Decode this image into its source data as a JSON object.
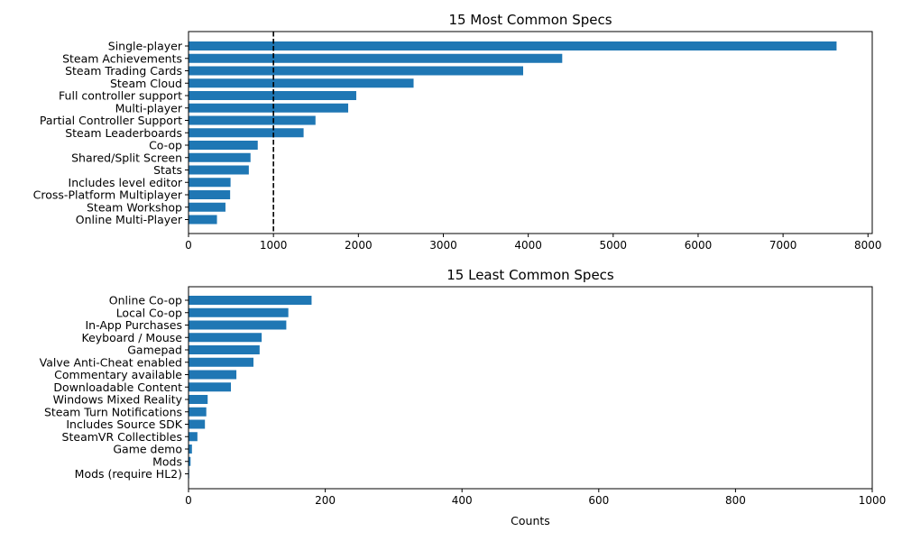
{
  "colors": {
    "bar": "#1f77b4",
    "axis": "#000000",
    "refline": "#000000"
  },
  "chart_data": [
    {
      "type": "bar",
      "orientation": "horizontal",
      "title": "15 Most Common Specs",
      "xlabel": "",
      "ylabel": "",
      "xlim": [
        0,
        8050
      ],
      "xticks": [
        0,
        1000,
        2000,
        3000,
        4000,
        5000,
        6000,
        7000,
        8000
      ],
      "reference_line": {
        "x": 1000,
        "style": "dashed"
      },
      "categories": [
        "Single-player",
        "Steam Achievements",
        "Steam Trading Cards",
        "Steam Cloud",
        "Full controller support",
        "Multi-player",
        "Partial Controller Support",
        "Steam Leaderboards",
        "Co-op",
        "Shared/Split Screen",
        "Stats",
        "Includes level editor",
        "Cross-Platform Multiplayer",
        "Steam Workshop",
        "Online Multi-Player"
      ],
      "values": [
        7630,
        4400,
        3940,
        2650,
        1975,
        1880,
        1495,
        1355,
        815,
        730,
        710,
        495,
        490,
        435,
        335
      ]
    },
    {
      "type": "bar",
      "orientation": "horizontal",
      "title": "15 Least Common Specs",
      "xlabel": "Counts",
      "ylabel": "",
      "xlim": [
        0,
        1000
      ],
      "xticks": [
        0,
        200,
        400,
        600,
        800,
        1000
      ],
      "categories": [
        "Online Co-op",
        "Local Co-op",
        "In-App Purchases",
        "Keyboard / Mouse",
        "Gamepad",
        "Valve Anti-Cheat enabled",
        "Commentary available",
        "Downloadable Content",
        "Windows Mixed Reality",
        "Steam Turn Notifications",
        "Includes Source SDK",
        "SteamVR Collectibles",
        "Game demo",
        "Mods",
        "Mods (require HL2)"
      ],
      "values": [
        180,
        146,
        143,
        107,
        104,
        95,
        70,
        62,
        28,
        26,
        24,
        13,
        5,
        3,
        1
      ]
    }
  ]
}
